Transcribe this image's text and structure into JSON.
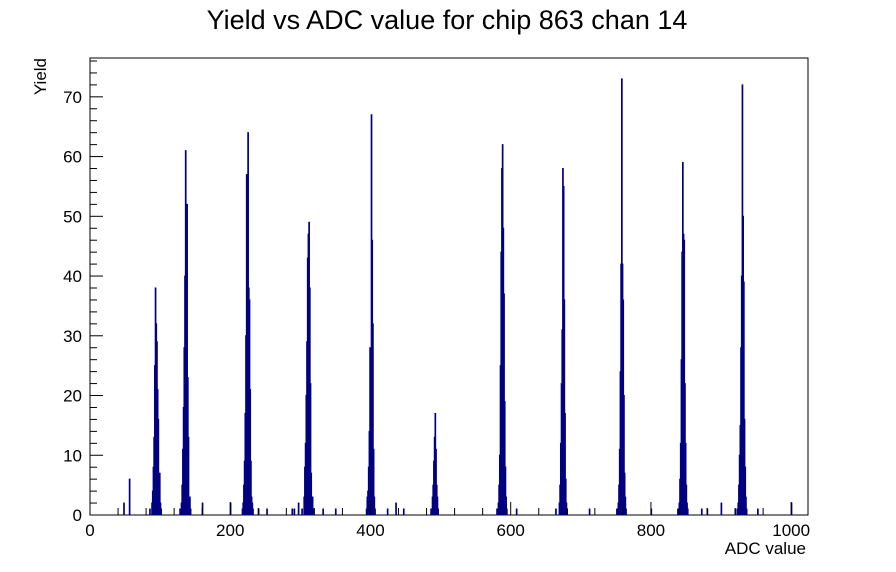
{
  "chart_data": {
    "type": "bar",
    "title": "Yield vs ADC value for chip 863 chan 14",
    "xlabel": "ADC value",
    "ylabel": "Yield",
    "xlim": [
      0,
      1024
    ],
    "ylim": [
      0,
      76.5
    ],
    "x_ticks": [
      0,
      200,
      400,
      600,
      800,
      1000
    ],
    "y_ticks": [
      0,
      10,
      20,
      30,
      40,
      50,
      60,
      70
    ],
    "grid": false,
    "bin_width": 1,
    "series": [
      {
        "color": "#000080",
        "bins": [
          [
            48,
            2
          ],
          [
            56,
            6
          ],
          [
            85,
            1
          ],
          [
            88,
            2
          ],
          [
            89,
            4
          ],
          [
            90,
            8
          ],
          [
            91,
            13
          ],
          [
            92,
            25
          ],
          [
            93,
            38
          ],
          [
            94,
            32
          ],
          [
            95,
            29
          ],
          [
            96,
            21
          ],
          [
            97,
            16
          ],
          [
            98,
            5
          ],
          [
            99,
            7
          ],
          [
            100,
            2
          ],
          [
            101,
            1
          ],
          [
            128,
            1
          ],
          [
            130,
            2
          ],
          [
            131,
            5
          ],
          [
            132,
            11
          ],
          [
            133,
            18
          ],
          [
            134,
            28
          ],
          [
            135,
            40
          ],
          [
            136,
            61
          ],
          [
            137,
            38
          ],
          [
            138,
            52
          ],
          [
            139,
            23
          ],
          [
            140,
            13
          ],
          [
            141,
            3
          ],
          [
            142,
            3
          ],
          [
            143,
            1
          ],
          [
            160,
            2
          ],
          [
            200,
            2
          ],
          [
            217,
            1
          ],
          [
            218,
            2
          ],
          [
            219,
            5
          ],
          [
            220,
            9
          ],
          [
            221,
            17
          ],
          [
            222,
            30
          ],
          [
            223,
            57
          ],
          [
            224,
            47
          ],
          [
            225,
            64
          ],
          [
            226,
            38
          ],
          [
            227,
            36
          ],
          [
            228,
            21
          ],
          [
            229,
            9
          ],
          [
            230,
            3
          ],
          [
            231,
            2
          ],
          [
            232,
            1
          ],
          [
            240,
            1
          ],
          [
            252,
            1
          ],
          [
            288,
            1
          ],
          [
            291,
            1
          ],
          [
            297,
            2
          ],
          [
            302,
            1
          ],
          [
            305,
            3
          ],
          [
            306,
            8
          ],
          [
            307,
            12
          ],
          [
            308,
            20
          ],
          [
            309,
            29
          ],
          [
            310,
            43
          ],
          [
            311,
            47
          ],
          [
            312,
            49
          ],
          [
            313,
            38
          ],
          [
            314,
            22
          ],
          [
            315,
            7
          ],
          [
            316,
            3
          ],
          [
            317,
            3
          ],
          [
            318,
            1
          ],
          [
            332,
            1
          ],
          [
            350,
            1
          ],
          [
            394,
            1
          ],
          [
            395,
            3
          ],
          [
            396,
            4
          ],
          [
            397,
            8
          ],
          [
            398,
            14
          ],
          [
            399,
            28
          ],
          [
            400,
            27
          ],
          [
            401,
            67
          ],
          [
            402,
            46
          ],
          [
            403,
            32
          ],
          [
            404,
            11
          ],
          [
            405,
            3
          ],
          [
            406,
            1
          ],
          [
            424,
            1
          ],
          [
            436,
            2
          ],
          [
            447,
            1
          ],
          [
            486,
            1
          ],
          [
            488,
            3
          ],
          [
            489,
            5
          ],
          [
            490,
            9
          ],
          [
            491,
            13
          ],
          [
            492,
            17
          ],
          [
            493,
            11
          ],
          [
            494,
            5
          ],
          [
            495,
            3
          ],
          [
            496,
            1
          ],
          [
            580,
            1
          ],
          [
            582,
            2
          ],
          [
            583,
            5
          ],
          [
            584,
            10
          ],
          [
            585,
            25
          ],
          [
            586,
            44
          ],
          [
            587,
            58
          ],
          [
            588,
            62
          ],
          [
            589,
            48
          ],
          [
            590,
            37
          ],
          [
            591,
            19
          ],
          [
            592,
            8
          ],
          [
            593,
            3
          ],
          [
            594,
            1
          ],
          [
            608,
            1
          ],
          [
            664,
            1
          ],
          [
            669,
            2
          ],
          [
            670,
            5
          ],
          [
            671,
            12
          ],
          [
            672,
            22
          ],
          [
            673,
            31
          ],
          [
            674,
            58
          ],
          [
            675,
            55
          ],
          [
            676,
            36
          ],
          [
            677,
            17
          ],
          [
            678,
            6
          ],
          [
            679,
            2
          ],
          [
            680,
            1
          ],
          [
            712,
            1
          ],
          [
            751,
            1
          ],
          [
            753,
            2
          ],
          [
            754,
            5
          ],
          [
            755,
            11
          ],
          [
            756,
            24
          ],
          [
            757,
            42
          ],
          [
            758,
            73
          ],
          [
            759,
            42
          ],
          [
            760,
            36
          ],
          [
            761,
            20
          ],
          [
            762,
            7
          ],
          [
            763,
            3
          ],
          [
            764,
            1
          ],
          [
            800,
            1
          ],
          [
            838,
            1
          ],
          [
            840,
            2
          ],
          [
            841,
            6
          ],
          [
            842,
            12
          ],
          [
            843,
            26
          ],
          [
            844,
            44
          ],
          [
            845,
            59
          ],
          [
            846,
            47
          ],
          [
            847,
            46
          ],
          [
            848,
            22
          ],
          [
            849,
            12
          ],
          [
            850,
            5
          ],
          [
            851,
            2
          ],
          [
            852,
            1
          ],
          [
            872,
            1
          ],
          [
            880,
            1
          ],
          [
            900,
            2
          ],
          [
            920,
            1
          ],
          [
            923,
            1
          ],
          [
            924,
            2
          ],
          [
            925,
            5
          ],
          [
            926,
            10
          ],
          [
            927,
            15
          ],
          [
            928,
            28
          ],
          [
            929,
            40
          ],
          [
            930,
            72
          ],
          [
            931,
            50
          ],
          [
            932,
            39
          ],
          [
            933,
            16
          ],
          [
            934,
            8
          ],
          [
            935,
            3
          ],
          [
            936,
            1
          ],
          [
            952,
            1
          ],
          [
            1000,
            2
          ]
        ]
      }
    ]
  }
}
